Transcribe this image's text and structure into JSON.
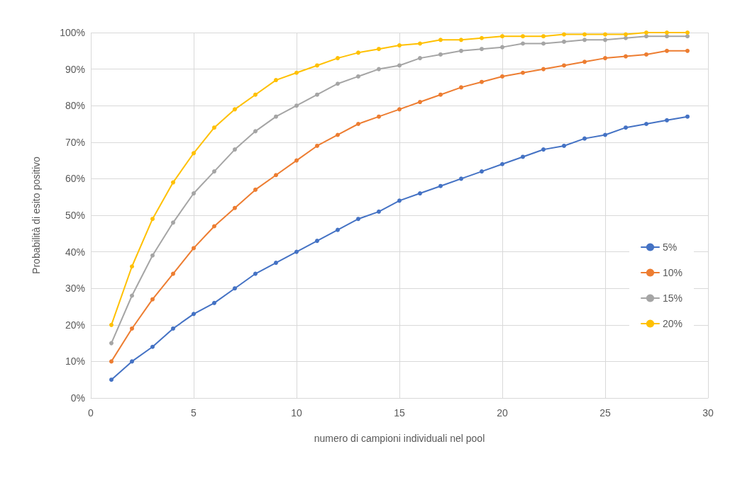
{
  "chart_data": {
    "type": "line",
    "xlabel": "numero di campioni individuali nel pool",
    "ylabel": "Probabilità di esito positivo",
    "x": [
      1,
      2,
      3,
      4,
      5,
      6,
      7,
      8,
      9,
      10,
      11,
      12,
      13,
      14,
      15,
      16,
      17,
      18,
      19,
      20,
      21,
      22,
      23,
      24,
      25,
      26,
      27,
      28,
      29
    ],
    "series": [
      {
        "name": "5%",
        "color": "#4472c4",
        "values": [
          5,
          10,
          14,
          19,
          23,
          26,
          30,
          34,
          37,
          40,
          43,
          46,
          49,
          51,
          54,
          56,
          58,
          60,
          62,
          64,
          66,
          68,
          69,
          71,
          72,
          74,
          75,
          76,
          77
        ]
      },
      {
        "name": "10%",
        "color": "#ed7d31",
        "values": [
          10,
          19,
          27,
          34,
          41,
          47,
          52,
          57,
          61,
          65,
          69,
          72,
          75,
          77,
          79,
          81,
          83,
          85,
          86.5,
          88,
          89,
          90,
          91,
          92,
          93,
          93.5,
          94,
          95,
          95
        ]
      },
      {
        "name": "15%",
        "color": "#a5a5a5",
        "values": [
          15,
          28,
          39,
          48,
          56,
          62,
          68,
          73,
          77,
          80,
          83,
          86,
          88,
          90,
          91,
          93,
          94,
          95,
          95.5,
          96,
          97,
          97,
          97.5,
          98,
          98,
          98.5,
          99,
          99,
          99
        ]
      },
      {
        "name": "20%",
        "color": "#ffc000",
        "values": [
          20,
          36,
          49,
          59,
          67,
          74,
          79,
          83,
          87,
          89,
          91,
          93,
          94.5,
          95.5,
          96.5,
          97,
          98,
          98,
          98.5,
          99,
          99,
          99,
          99.5,
          99.5,
          99.5,
          99.5,
          100,
          100,
          100
        ]
      }
    ],
    "xlim": [
      0,
      30
    ],
    "xticks": [
      0,
      5,
      10,
      15,
      20,
      25,
      30
    ],
    "ylim": [
      0,
      100
    ],
    "yticks": [
      {
        "value": 0,
        "label": "0%"
      },
      {
        "value": 10,
        "label": "10%"
      },
      {
        "value": 20,
        "label": "20%"
      },
      {
        "value": 30,
        "label": "30%"
      },
      {
        "value": 40,
        "label": "40%"
      },
      {
        "value": 50,
        "label": "50%"
      },
      {
        "value": 60,
        "label": "60%"
      },
      {
        "value": 70,
        "label": "70%"
      },
      {
        "value": 80,
        "label": "80%"
      },
      {
        "value": 90,
        "label": "90%"
      },
      {
        "value": 100,
        "label": "100%"
      }
    ],
    "grid": true,
    "legend": "right",
    "marker": "circle",
    "line_style": "solid"
  }
}
